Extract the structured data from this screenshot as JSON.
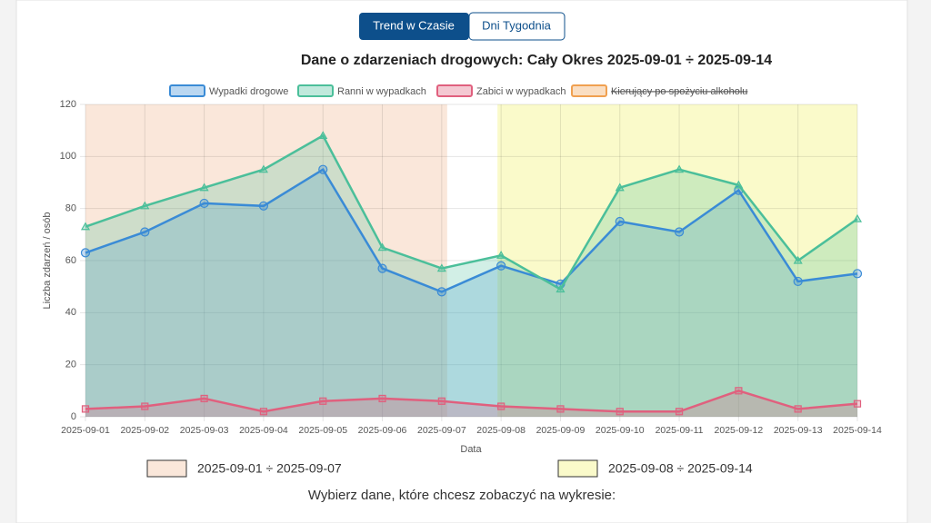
{
  "tabs": [
    "Trend w Czasie",
    "Dni Tygodnia"
  ],
  "chart_data": {
    "type": "line",
    "title": "Dane o zdarzeniach drogowych: Cały Okres 2025-09-01 ÷ 2025-09-14",
    "y_label": "Liczba zdarzeń / osób",
    "x_label": "Data",
    "categories": [
      "2025-09-01",
      "2025-09-02",
      "2025-09-03",
      "2025-09-04",
      "2025-09-05",
      "2025-09-06",
      "2025-09-07",
      "2025-09-08",
      "2025-09-09",
      "2025-09-10",
      "2025-09-11",
      "2025-09-12",
      "2025-09-13",
      "2025-09-14"
    ],
    "series": [
      {
        "name": "Wypadki drogowe",
        "color": "#3a8bd6",
        "marker": "circle",
        "values": [
          63,
          71,
          82,
          81,
          95,
          57,
          48,
          58,
          51,
          75,
          71,
          87,
          52,
          55
        ]
      },
      {
        "name": "Ranni w wypadkach",
        "color": "#4bbf9a",
        "marker": "triangle",
        "values": [
          73,
          81,
          88,
          95,
          108,
          65,
          57,
          62,
          49,
          88,
          95,
          89,
          60,
          76
        ]
      },
      {
        "name": "Zabici w wypadkach",
        "color": "#e0607e",
        "marker": "square",
        "values": [
          3,
          4,
          7,
          2,
          6,
          7,
          6,
          4,
          3,
          2,
          2,
          10,
          3,
          5
        ]
      },
      {
        "name": "Kierujący po spożyciu alkoholu",
        "color": "#f0a050",
        "hidden": true
      }
    ],
    "ylim": [
      0,
      120
    ],
    "yticks": [
      0,
      20,
      40,
      60,
      80,
      100,
      120
    ],
    "grid": true,
    "regions": [
      {
        "label": "2025-09-01 ÷ 2025-09-07",
        "color": "#f5c9ae"
      },
      {
        "label": "2025-09-08 ÷ 2025-09-14",
        "color": "#f3f38a"
      }
    ]
  },
  "prompt": "Wybierz dane, które chcesz zobaczyć na wykresie:"
}
